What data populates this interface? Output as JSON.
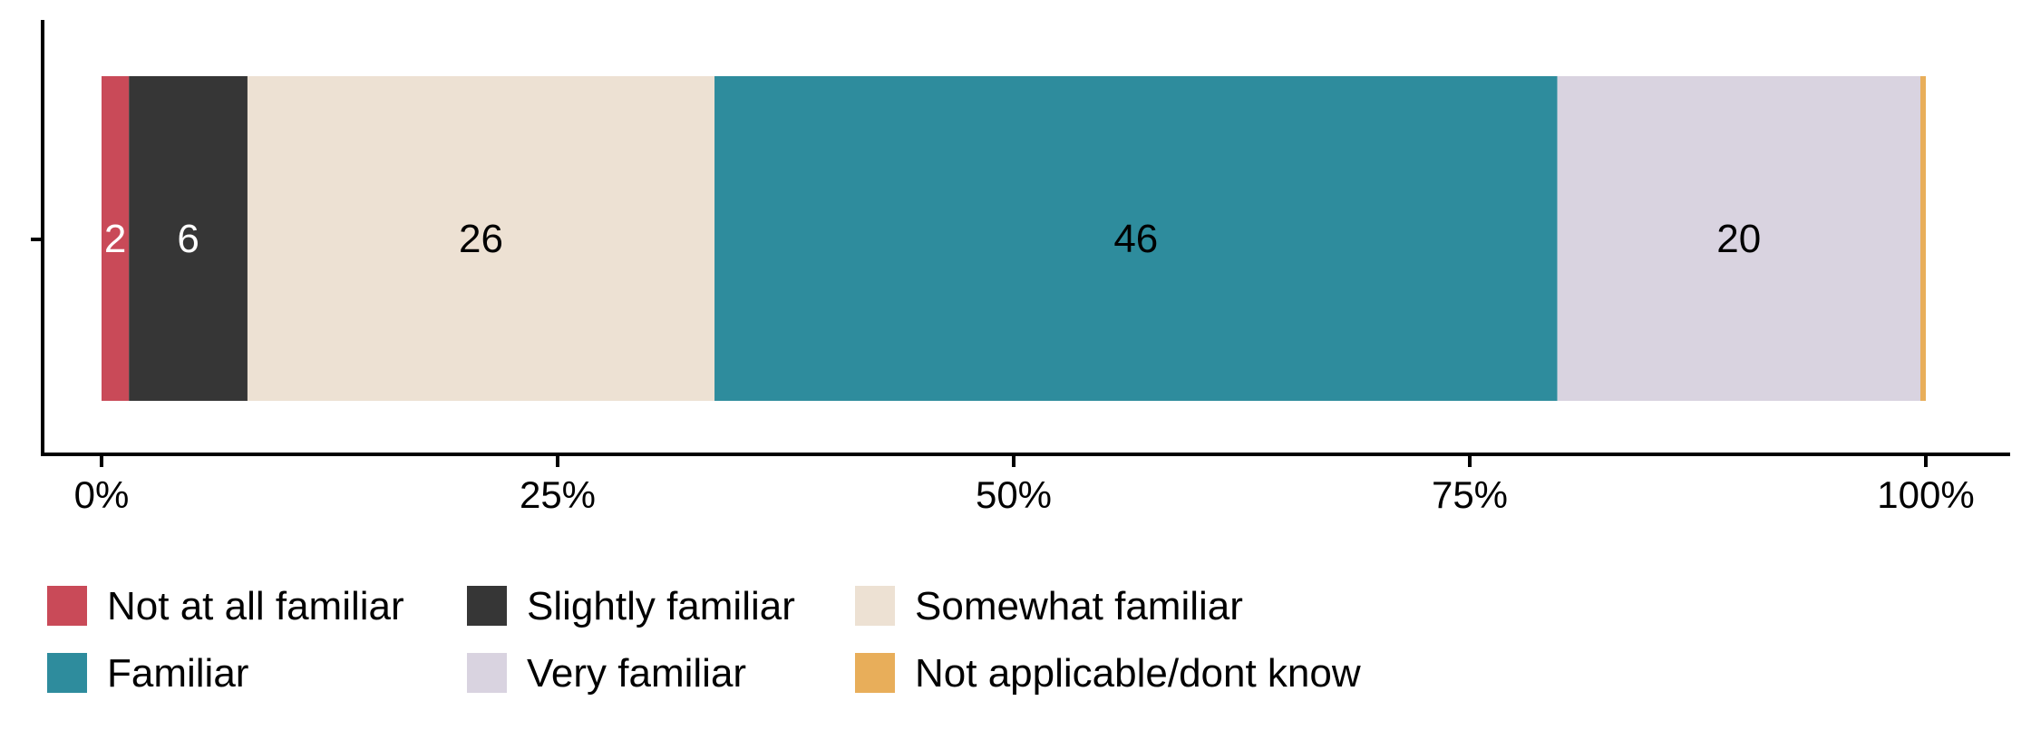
{
  "chart_data": {
    "type": "bar",
    "orientation": "horizontal",
    "stacked": true,
    "categories": [
      ""
    ],
    "series": [
      {
        "name": "Not at all familiar",
        "values": [
          1.5
        ],
        "label": "2",
        "color": "#C94A58",
        "label_color": "#ffffff"
      },
      {
        "name": "Slightly familiar",
        "values": [
          6.5
        ],
        "label": "6",
        "color": "#363636",
        "label_color": "#ffffff"
      },
      {
        "name": "Somewhat familiar",
        "values": [
          25.6
        ],
        "label": "26",
        "color": "#EDE1D3",
        "label_color": "#000000"
      },
      {
        "name": "Familiar",
        "values": [
          46.2
        ],
        "label": "46",
        "color": "#2E8C9D",
        "label_color": "#000000"
      },
      {
        "name": "Very familiar",
        "values": [
          19.9
        ],
        "label": "20",
        "color": "#D9D3E0",
        "label_color": "#000000"
      },
      {
        "name": "Not applicable/dont know",
        "values": [
          0.3
        ],
        "label": "",
        "color": "#E8AE5A",
        "label_color": "#000000"
      }
    ],
    "xlim": [
      0,
      100
    ],
    "x_ticks": [
      "0%",
      "25%",
      "50%",
      "75%",
      "100%"
    ],
    "x_tick_values": [
      0,
      25,
      50,
      75,
      100
    ],
    "xlabel": "",
    "ylabel": "",
    "title": "",
    "grid": false,
    "legend_position": "bottom-left"
  }
}
